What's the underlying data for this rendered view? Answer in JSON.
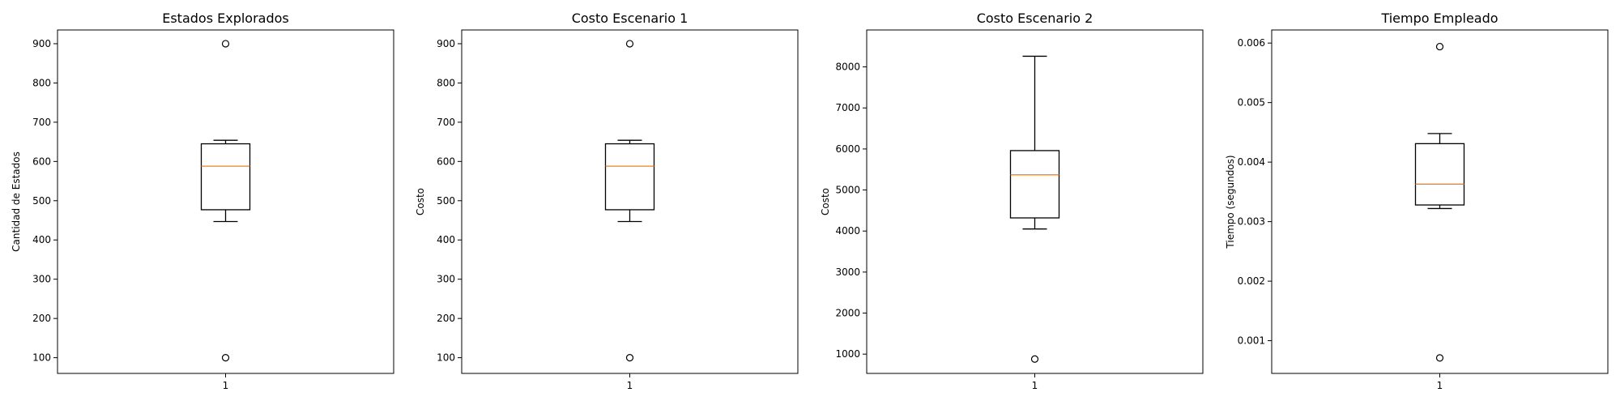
{
  "chart_data": [
    {
      "type": "box",
      "title": "Estados Explorados",
      "ylabel": "Cantidad de Estados",
      "xlabel": "",
      "categories": [
        "1"
      ],
      "ylim": [
        60,
        935
      ],
      "yticks": [
        100,
        200,
        300,
        400,
        500,
        600,
        700,
        800,
        900
      ],
      "box": {
        "whisker_low": 447,
        "q1": 477,
        "median": 588,
        "q3": 645,
        "whisker_high": 654
      },
      "outliers": [
        900,
        100
      ]
    },
    {
      "type": "box",
      "title": "Costo Escenario 1",
      "ylabel": "Costo",
      "xlabel": "",
      "categories": [
        "1"
      ],
      "ylim": [
        60,
        935
      ],
      "yticks": [
        100,
        200,
        300,
        400,
        500,
        600,
        700,
        800,
        900
      ],
      "box": {
        "whisker_low": 447,
        "q1": 477,
        "median": 588,
        "q3": 645,
        "whisker_high": 654
      },
      "outliers": [
        900,
        100
      ]
    },
    {
      "type": "box",
      "title": "Costo Escenario 2",
      "ylabel": "Costo",
      "xlabel": "",
      "categories": [
        "1"
      ],
      "ylim": [
        530,
        8900
      ],
      "yticks": [
        1000,
        2000,
        3000,
        4000,
        5000,
        6000,
        7000,
        8000
      ],
      "box": {
        "whisker_low": 4050,
        "q1": 4320,
        "median": 5370,
        "q3": 5960,
        "whisker_high": 8260
      },
      "outliers": [
        880
      ]
    },
    {
      "type": "box",
      "title": "Tiempo Empleado",
      "ylabel": "Tiempo (segundos)",
      "xlabel": "",
      "categories": [
        "1"
      ],
      "ylim": [
        0.00045,
        0.00622
      ],
      "yticks": [
        0.001,
        0.002,
        0.003,
        0.004,
        0.005,
        0.006
      ],
      "ytick_labels": [
        "0.001",
        "0.002",
        "0.003",
        "0.004",
        "0.005",
        "0.006"
      ],
      "box": {
        "whisker_low": 0.00322,
        "q1": 0.00328,
        "median": 0.00363,
        "q3": 0.00431,
        "whisker_high": 0.00448
      },
      "outliers": [
        0.00594,
        0.00071
      ]
    }
  ],
  "colors": {
    "box": "#000000",
    "median": "#ff7f0e",
    "background": "#ffffff"
  }
}
